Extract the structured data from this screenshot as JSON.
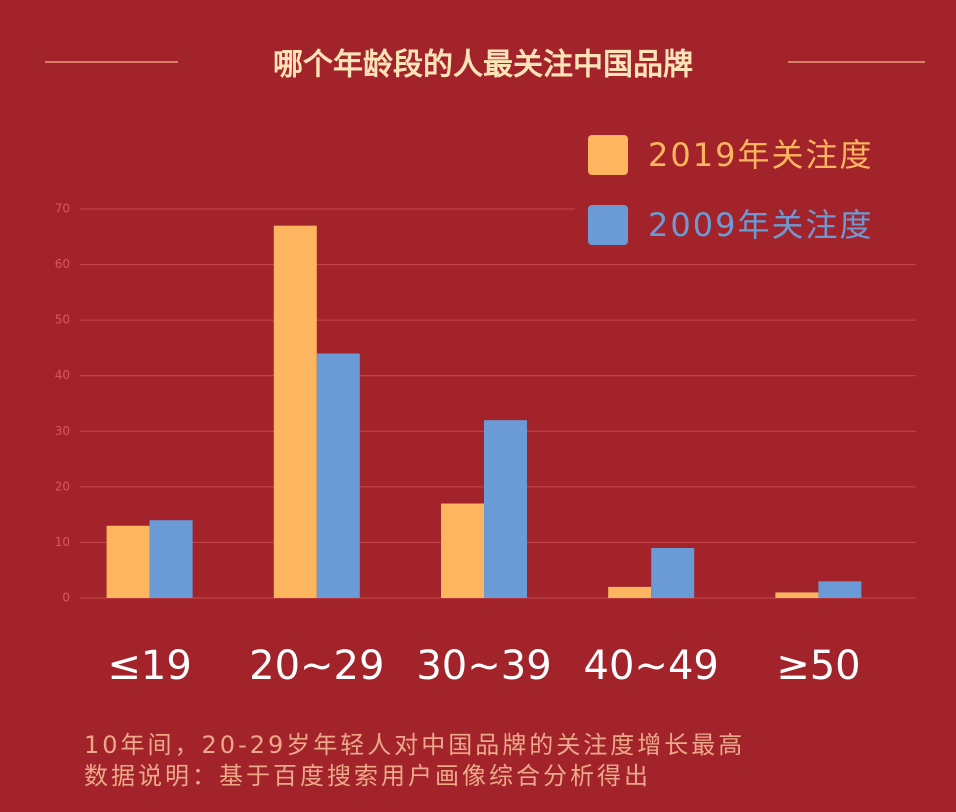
{
  "chart_data": {
    "type": "bar",
    "title": "哪个年龄段的人最关注中国品牌",
    "categories": [
      "≤19",
      "20~29",
      "30~39",
      "40~49",
      "≥50"
    ],
    "series": [
      {
        "name": "2019年关注度",
        "color": "#fdb65f",
        "values": [
          13,
          67,
          17,
          2,
          1
        ]
      },
      {
        "name": "2009年关注度",
        "color": "#6b9bd6",
        "values": [
          14,
          44,
          32,
          9,
          3
        ]
      }
    ],
    "ylim": [
      0,
      70
    ],
    "yticks": [
      0,
      10,
      20,
      30,
      40,
      50,
      60,
      70
    ],
    "grid": true,
    "legend": "top-right",
    "annotations": [
      "10年间，20-29岁年轻人对中国品牌的关注度增长最高",
      "数据说明：基于百度搜索用户画像综合分析得出"
    ]
  }
}
